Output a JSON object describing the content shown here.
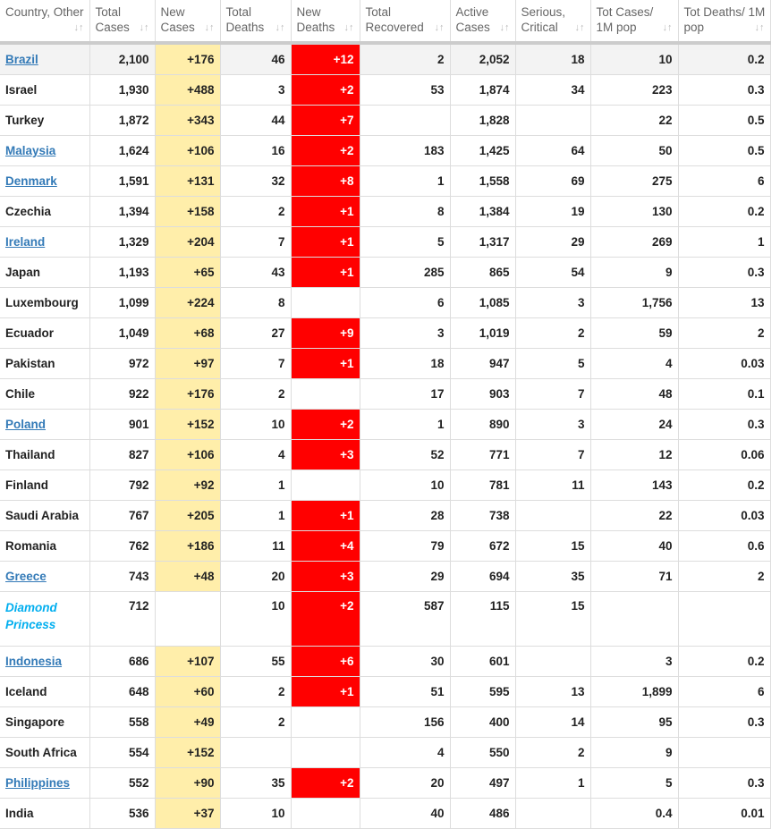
{
  "columns": [
    "Country, Other",
    "Total Cases",
    "New Cases",
    "Total Deaths",
    "New Deaths",
    "Total Recovered",
    "Active Cases",
    "Serious, Critical",
    "Tot Cases/ 1M pop",
    "Tot Deaths/ 1M pop"
  ],
  "sort_icon": "↓↑",
  "colors": {
    "new_cases_bg": "#ffeeaa",
    "new_deaths_bg": "#ff0000",
    "link": "#337ab7",
    "ship": "#00aeef"
  },
  "rows": [
    {
      "country": "Brazil",
      "link": true,
      "values": [
        "2,100",
        "+176",
        "46",
        "+12",
        "2",
        "2,052",
        "18",
        "10",
        "0.2"
      ]
    },
    {
      "country": "Israel",
      "values": [
        "1,930",
        "+488",
        "3",
        "+2",
        "53",
        "1,874",
        "34",
        "223",
        "0.3"
      ]
    },
    {
      "country": "Turkey",
      "values": [
        "1,872",
        "+343",
        "44",
        "+7",
        "",
        "1,828",
        "",
        "22",
        "0.5"
      ]
    },
    {
      "country": "Malaysia",
      "link": true,
      "values": [
        "1,624",
        "+106",
        "16",
        "+2",
        "183",
        "1,425",
        "64",
        "50",
        "0.5"
      ]
    },
    {
      "country": "Denmark",
      "link": true,
      "values": [
        "1,591",
        "+131",
        "32",
        "+8",
        "1",
        "1,558",
        "69",
        "275",
        "6"
      ]
    },
    {
      "country": "Czechia",
      "values": [
        "1,394",
        "+158",
        "2",
        "+1",
        "8",
        "1,384",
        "19",
        "130",
        "0.2"
      ]
    },
    {
      "country": "Ireland",
      "link": true,
      "values": [
        "1,329",
        "+204",
        "7",
        "+1",
        "5",
        "1,317",
        "29",
        "269",
        "1"
      ]
    },
    {
      "country": "Japan",
      "values": [
        "1,193",
        "+65",
        "43",
        "+1",
        "285",
        "865",
        "54",
        "9",
        "0.3"
      ]
    },
    {
      "country": "Luxembourg",
      "values": [
        "1,099",
        "+224",
        "8",
        "",
        "6",
        "1,085",
        "3",
        "1,756",
        "13"
      ]
    },
    {
      "country": "Ecuador",
      "values": [
        "1,049",
        "+68",
        "27",
        "+9",
        "3",
        "1,019",
        "2",
        "59",
        "2"
      ]
    },
    {
      "country": "Pakistan",
      "values": [
        "972",
        "+97",
        "7",
        "+1",
        "18",
        "947",
        "5",
        "4",
        "0.03"
      ]
    },
    {
      "country": "Chile",
      "values": [
        "922",
        "+176",
        "2",
        "",
        "17",
        "903",
        "7",
        "48",
        "0.1"
      ]
    },
    {
      "country": "Poland",
      "link": true,
      "values": [
        "901",
        "+152",
        "10",
        "+2",
        "1",
        "890",
        "3",
        "24",
        "0.3"
      ]
    },
    {
      "country": "Thailand",
      "values": [
        "827",
        "+106",
        "4",
        "+3",
        "52",
        "771",
        "7",
        "12",
        "0.06"
      ]
    },
    {
      "country": "Finland",
      "values": [
        "792",
        "+92",
        "1",
        "",
        "10",
        "781",
        "11",
        "143",
        "0.2"
      ]
    },
    {
      "country": "Saudi Arabia",
      "values": [
        "767",
        "+205",
        "1",
        "+1",
        "28",
        "738",
        "",
        "22",
        "0.03"
      ]
    },
    {
      "country": "Romania",
      "values": [
        "762",
        "+186",
        "11",
        "+4",
        "79",
        "672",
        "15",
        "40",
        "0.6"
      ]
    },
    {
      "country": "Greece",
      "link": true,
      "values": [
        "743",
        "+48",
        "20",
        "+3",
        "29",
        "694",
        "35",
        "71",
        "2"
      ]
    },
    {
      "country": "Diamond Princess",
      "ship": true,
      "values": [
        "712",
        "",
        "10",
        "+2",
        "587",
        "115",
        "15",
        "",
        ""
      ]
    },
    {
      "country": "Indonesia",
      "link": true,
      "values": [
        "686",
        "+107",
        "55",
        "+6",
        "30",
        "601",
        "",
        "3",
        "0.2"
      ]
    },
    {
      "country": "Iceland",
      "values": [
        "648",
        "+60",
        "2",
        "+1",
        "51",
        "595",
        "13",
        "1,899",
        "6"
      ]
    },
    {
      "country": "Singapore",
      "values": [
        "558",
        "+49",
        "2",
        "",
        "156",
        "400",
        "14",
        "95",
        "0.3"
      ]
    },
    {
      "country": "South Africa",
      "values": [
        "554",
        "+152",
        "",
        "",
        "4",
        "550",
        "2",
        "9",
        ""
      ]
    },
    {
      "country": "Philippines",
      "link": true,
      "values": [
        "552",
        "+90",
        "35",
        "+2",
        "20",
        "497",
        "1",
        "5",
        "0.3"
      ]
    },
    {
      "country": "India",
      "values": [
        "536",
        "+37",
        "10",
        "",
        "40",
        "486",
        "",
        "0.4",
        "0.01"
      ]
    }
  ]
}
